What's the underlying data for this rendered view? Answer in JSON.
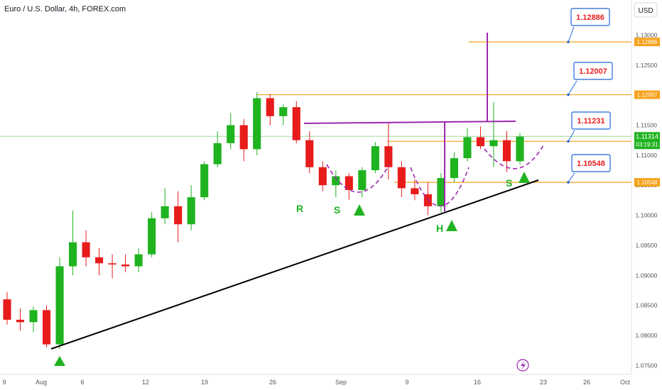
{
  "header": {
    "title": "Euro / U.S. Dollar, 4h, FOREX.com",
    "currency_button": "USD"
  },
  "chart_data": {
    "type": "candlestick",
    "symbol": "EURUSD",
    "timeframe": "4h",
    "y_axis": {
      "min": 1.0735,
      "max": 1.1323,
      "ticks": [
        "1.13000",
        "1.12500",
        "1.12000",
        "1.11500",
        "1.11000",
        "1.10500",
        "1.10000",
        "1.09500",
        "1.09000",
        "1.08500",
        "1.08000",
        "1.07500"
      ]
    },
    "x_axis": {
      "ticks": [
        "9",
        "Aug",
        "6",
        "12",
        "19",
        "26",
        "Sep",
        "9",
        "16",
        "23",
        "26",
        "Oct"
      ]
    },
    "series": [
      {
        "date": "2024-07-29",
        "o": 1.086,
        "h": 1.0872,
        "l": 1.0818,
        "c": 1.0826
      },
      {
        "date": "2024-07-30",
        "o": 1.0826,
        "h": 1.0845,
        "l": 1.0808,
        "c": 1.0822
      },
      {
        "date": "2024-07-31",
        "o": 1.0822,
        "h": 1.0848,
        "l": 1.0805,
        "c": 1.0842
      },
      {
        "date": "2024-08-01",
        "o": 1.0842,
        "h": 1.085,
        "l": 1.078,
        "c": 1.0785
      },
      {
        "date": "2024-08-02",
        "o": 1.0785,
        "h": 1.093,
        "l": 1.0777,
        "c": 1.0915
      },
      {
        "date": "2024-08-05",
        "o": 1.0915,
        "h": 1.1008,
        "l": 1.09,
        "c": 1.0955
      },
      {
        "date": "2024-08-06",
        "o": 1.0955,
        "h": 1.0975,
        "l": 1.0915,
        "c": 1.093
      },
      {
        "date": "2024-08-07",
        "o": 1.093,
        "h": 1.0945,
        "l": 1.09,
        "c": 1.092
      },
      {
        "date": "2024-08-08",
        "o": 1.092,
        "h": 1.0935,
        "l": 1.0895,
        "c": 1.0918
      },
      {
        "date": "2024-08-09",
        "o": 1.0918,
        "h": 1.0935,
        "l": 1.0905,
        "c": 1.0915
      },
      {
        "date": "2024-08-12",
        "o": 1.0915,
        "h": 1.0945,
        "l": 1.0905,
        "c": 1.0935
      },
      {
        "date": "2024-08-13",
        "o": 1.0935,
        "h": 1.1005,
        "l": 1.093,
        "c": 1.0995
      },
      {
        "date": "2024-08-14",
        "o": 1.0995,
        "h": 1.1045,
        "l": 1.0985,
        "c": 1.1015
      },
      {
        "date": "2024-08-15",
        "o": 1.1015,
        "h": 1.104,
        "l": 1.0955,
        "c": 1.0985
      },
      {
        "date": "2024-08-16",
        "o": 1.0985,
        "h": 1.105,
        "l": 1.0975,
        "c": 1.103
      },
      {
        "date": "2024-08-19",
        "o": 1.103,
        "h": 1.109,
        "l": 1.1025,
        "c": 1.1085
      },
      {
        "date": "2024-08-20",
        "o": 1.1085,
        "h": 1.114,
        "l": 1.108,
        "c": 1.112
      },
      {
        "date": "2024-08-21",
        "o": 1.112,
        "h": 1.117,
        "l": 1.111,
        "c": 1.115
      },
      {
        "date": "2024-08-22",
        "o": 1.115,
        "h": 1.116,
        "l": 1.109,
        "c": 1.111
      },
      {
        "date": "2024-08-23",
        "o": 1.111,
        "h": 1.1205,
        "l": 1.11,
        "c": 1.1195
      },
      {
        "date": "2024-08-26",
        "o": 1.1195,
        "h": 1.1202,
        "l": 1.115,
        "c": 1.1165
      },
      {
        "date": "2024-08-27",
        "o": 1.1165,
        "h": 1.1185,
        "l": 1.115,
        "c": 1.118
      },
      {
        "date": "2024-08-28",
        "o": 1.118,
        "h": 1.119,
        "l": 1.112,
        "c": 1.1125
      },
      {
        "date": "2024-08-29",
        "o": 1.1125,
        "h": 1.114,
        "l": 1.107,
        "c": 1.108
      },
      {
        "date": "2024-08-30",
        "o": 1.108,
        "h": 1.109,
        "l": 1.104,
        "c": 1.105
      },
      {
        "date": "2024-09-02",
        "o": 1.105,
        "h": 1.1075,
        "l": 1.103,
        "c": 1.1065
      },
      {
        "date": "2024-09-03",
        "o": 1.1065,
        "h": 1.107,
        "l": 1.1026,
        "c": 1.1042
      },
      {
        "date": "2024-09-04",
        "o": 1.1042,
        "h": 1.108,
        "l": 1.103,
        "c": 1.1075
      },
      {
        "date": "2024-09-05",
        "o": 1.1075,
        "h": 1.1122,
        "l": 1.107,
        "c": 1.1115
      },
      {
        "date": "2024-09-06",
        "o": 1.1115,
        "h": 1.1155,
        "l": 1.106,
        "c": 1.108
      },
      {
        "date": "2024-09-09",
        "o": 1.108,
        "h": 1.109,
        "l": 1.103,
        "c": 1.1045
      },
      {
        "date": "2024-09-10",
        "o": 1.1045,
        "h": 1.106,
        "l": 1.1025,
        "c": 1.1035
      },
      {
        "date": "2024-09-11",
        "o": 1.1035,
        "h": 1.1055,
        "l": 1.1,
        "c": 1.1015
      },
      {
        "date": "2024-09-12",
        "o": 1.1015,
        "h": 1.107,
        "l": 1.1005,
        "c": 1.1062
      },
      {
        "date": "2024-09-13",
        "o": 1.1062,
        "h": 1.1105,
        "l": 1.1055,
        "c": 1.1095
      },
      {
        "date": "2024-09-16",
        "o": 1.1095,
        "h": 1.1145,
        "l": 1.109,
        "c": 1.113
      },
      {
        "date": "2024-09-17",
        "o": 1.113,
        "h": 1.1148,
        "l": 1.111,
        "c": 1.1115
      },
      {
        "date": "2024-09-18",
        "o": 1.1115,
        "h": 1.1188,
        "l": 1.108,
        "c": 1.1125
      },
      {
        "date": "2024-09-19",
        "o": 1.1125,
        "h": 1.114,
        "l": 1.1072,
        "c": 1.109
      },
      {
        "date": "2024-09-20",
        "o": 1.109,
        "h": 1.1137,
        "l": 1.1085,
        "c": 1.1131
      }
    ],
    "last_price": 1.11314,
    "colors": {
      "up": "#26a69a",
      "down": "#ef5350",
      "bull_bright": "#1fb31f",
      "bear_bright": "#e81b1b"
    }
  },
  "levels": [
    {
      "price": 1.12886,
      "label": "1.12886",
      "axis_label": "1.12886",
      "color": "#f7a21b"
    },
    {
      "price": 1.12007,
      "label": "1.12007",
      "axis_label": "1.12007",
      "color": "#f7a21b"
    },
    {
      "price": 1.11231,
      "label": "1.11231",
      "axis_label": "1.11231",
      "color": "#f7a21b"
    },
    {
      "price": 1.10548,
      "label": "1.10548",
      "axis_label": "1.10548",
      "color": "#f7a21b"
    }
  ],
  "current_price": {
    "price": 1.11314,
    "axis_label": "1.11314",
    "sub_label": "03:19:31",
    "color": "#1fb31f"
  },
  "pattern_labels": {
    "left_shoulder": "S",
    "head": "H",
    "right_shoulder": "S",
    "reference": "R"
  },
  "drawing_colors": {
    "trendline": "#000000",
    "neckline": "#9c27b0",
    "arc": "#9c27b0",
    "arrow": "#1fb31f",
    "label_text": "#e91e1e",
    "label_border": "#1e66d8"
  }
}
